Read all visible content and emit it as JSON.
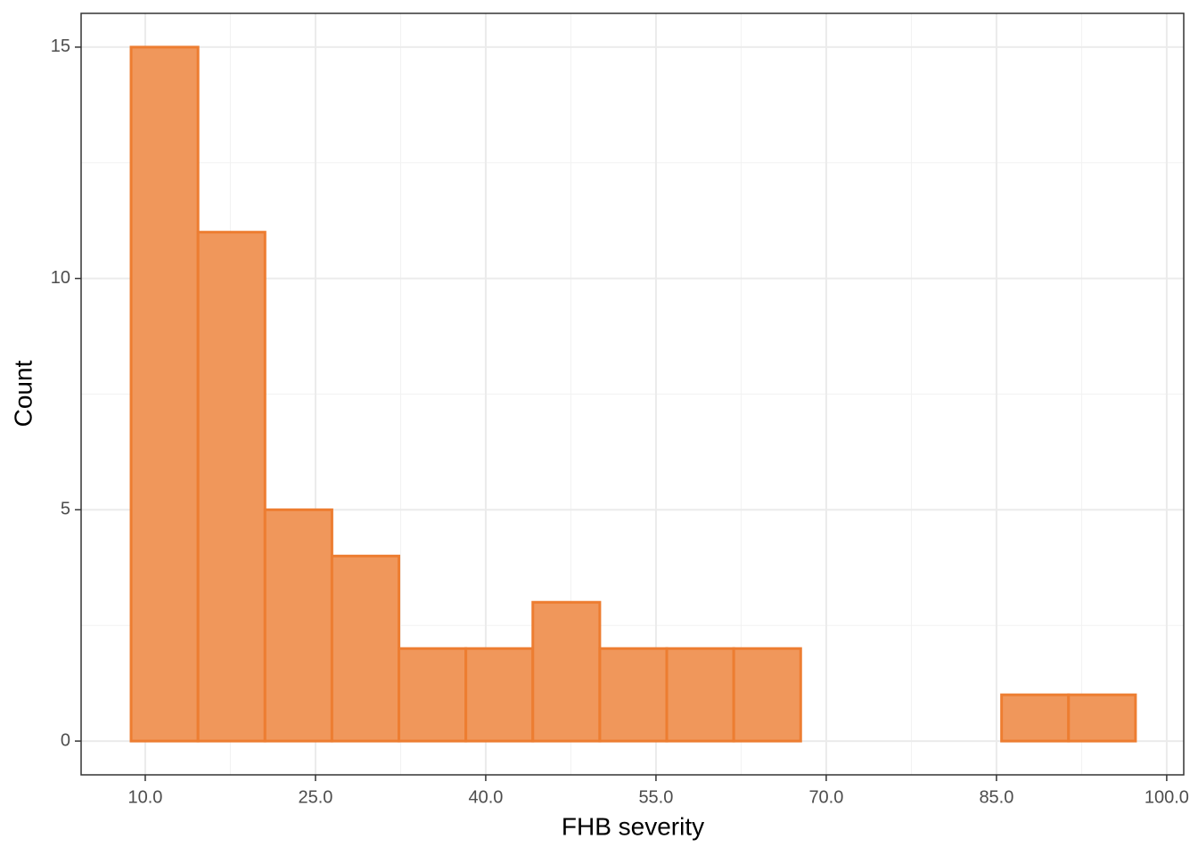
{
  "chart_data": {
    "type": "histogram",
    "x_label": "FHB severity",
    "y_label": "Count",
    "bins": [
      8.75,
      14.65,
      20.55,
      26.45,
      32.35,
      38.25,
      44.15,
      50.05,
      55.95,
      61.85,
      67.75,
      73.65,
      79.55,
      85.45,
      91.35,
      97.25
    ],
    "values": [
      15,
      11,
      5,
      4,
      2,
      2,
      3,
      2,
      2,
      2,
      0,
      0,
      0,
      1,
      1
    ],
    "color": "#f0975b",
    "edge_color": "#ed7d31",
    "xlim": [
      4.35,
      101.5
    ],
    "ylim": [
      -0.73,
      15.73
    ],
    "xticks": [
      {
        "value": 10,
        "label": "10.0"
      },
      {
        "value": 25,
        "label": "25.0"
      },
      {
        "value": 40,
        "label": "40.0"
      },
      {
        "value": 55,
        "label": "55.0"
      },
      {
        "value": 70,
        "label": "70.0"
      },
      {
        "value": 85,
        "label": "85.0"
      },
      {
        "value": 100,
        "label": "100.0"
      }
    ],
    "yticks": [
      0,
      5,
      10,
      15
    ],
    "minor_xticks": [
      17.5,
      32.5,
      47.5,
      62.5,
      77.5,
      92.5
    ],
    "minor_yticks": [
      2.5,
      7.5,
      12.5
    ],
    "grid": true
  }
}
